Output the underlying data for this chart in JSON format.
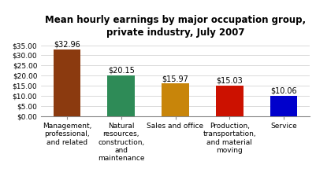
{
  "categories": [
    "Management,\nprofessional,\nand related",
    "Natural\nresources,\nconstruction,\nand\nmaintenance",
    "Sales and office",
    "Production,\ntransportation,\nand material\nmoving",
    "Service"
  ],
  "values": [
    32.96,
    20.15,
    15.97,
    15.03,
    10.06
  ],
  "bar_colors": [
    "#8B3A0F",
    "#2E8B57",
    "#C8850A",
    "#CC1100",
    "#0000CC"
  ],
  "title_line1": "Mean hourly earnings by major occupation group,",
  "title_line2": "private industry, July 2007",
  "ylim": [
    0,
    37
  ],
  "yticks": [
    0,
    5,
    10,
    15,
    20,
    25,
    30,
    35
  ],
  "ytick_labels": [
    "$0.00",
    "$5.00",
    "$10.00",
    "$15.00",
    "$20.00",
    "$25.00",
    "$30.00",
    "$35.00"
  ],
  "value_labels": [
    "$32.96",
    "$20.15",
    "$15.97",
    "$15.03",
    "$10.06"
  ],
  "title_fontsize": 8.5,
  "tick_fontsize": 6.5,
  "label_fontsize": 6.5,
  "value_fontsize": 7,
  "background_color": "#ffffff",
  "bar_width": 0.5
}
